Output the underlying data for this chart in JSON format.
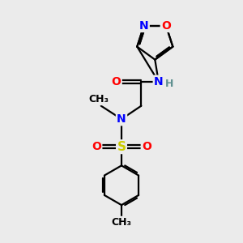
{
  "background_color": "#ebebeb",
  "atom_colors": {
    "C": "#000000",
    "N": "#0000ff",
    "O": "#ff0000",
    "S": "#cccc00",
    "H": "#5f9090"
  },
  "bond_color": "#000000",
  "bond_width": 1.6,
  "figsize": [
    3.0,
    3.0
  ],
  "dpi": 100,
  "xlim": [
    0,
    10
  ],
  "ylim": [
    0,
    10
  ]
}
